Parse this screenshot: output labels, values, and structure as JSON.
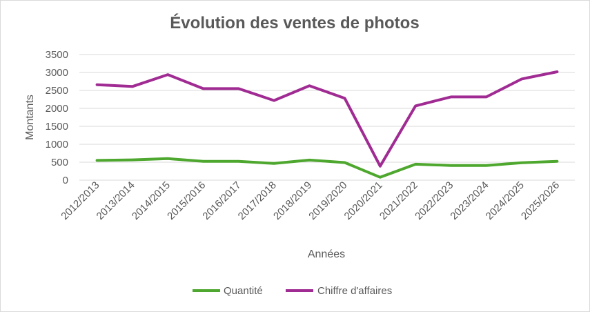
{
  "chart_data": {
    "type": "line",
    "title": "Évolution des ventes de photos",
    "xlabel": "Années",
    "ylabel": "Montants",
    "categories": [
      "2012/2013",
      "2013/2014",
      "2014/2015",
      "2015/2016",
      "2016/2017",
      "2017/2018",
      "2018/2019",
      "2019/2020",
      "2020/2021",
      "2021/2022",
      "2022/2023",
      "2023/2024",
      "2024/2025",
      "2025/2026"
    ],
    "ylim": [
      0,
      3500
    ],
    "yticks": [
      0,
      500,
      1000,
      1500,
      2000,
      2500,
      3000,
      3500
    ],
    "grid": true,
    "legend_position": "bottom",
    "series": [
      {
        "name": "Quantité",
        "color": "#4ea72e",
        "values": [
          550,
          565,
          600,
          525,
          525,
          465,
          560,
          490,
          80,
          445,
          410,
          410,
          485,
          525
        ]
      },
      {
        "name": "Chiffre d'affaires",
        "color": "#a02b93",
        "values": [
          2660,
          2610,
          2940,
          2550,
          2550,
          2220,
          2630,
          2280,
          390,
          2070,
          2320,
          2320,
          2820,
          3020
        ]
      }
    ]
  }
}
